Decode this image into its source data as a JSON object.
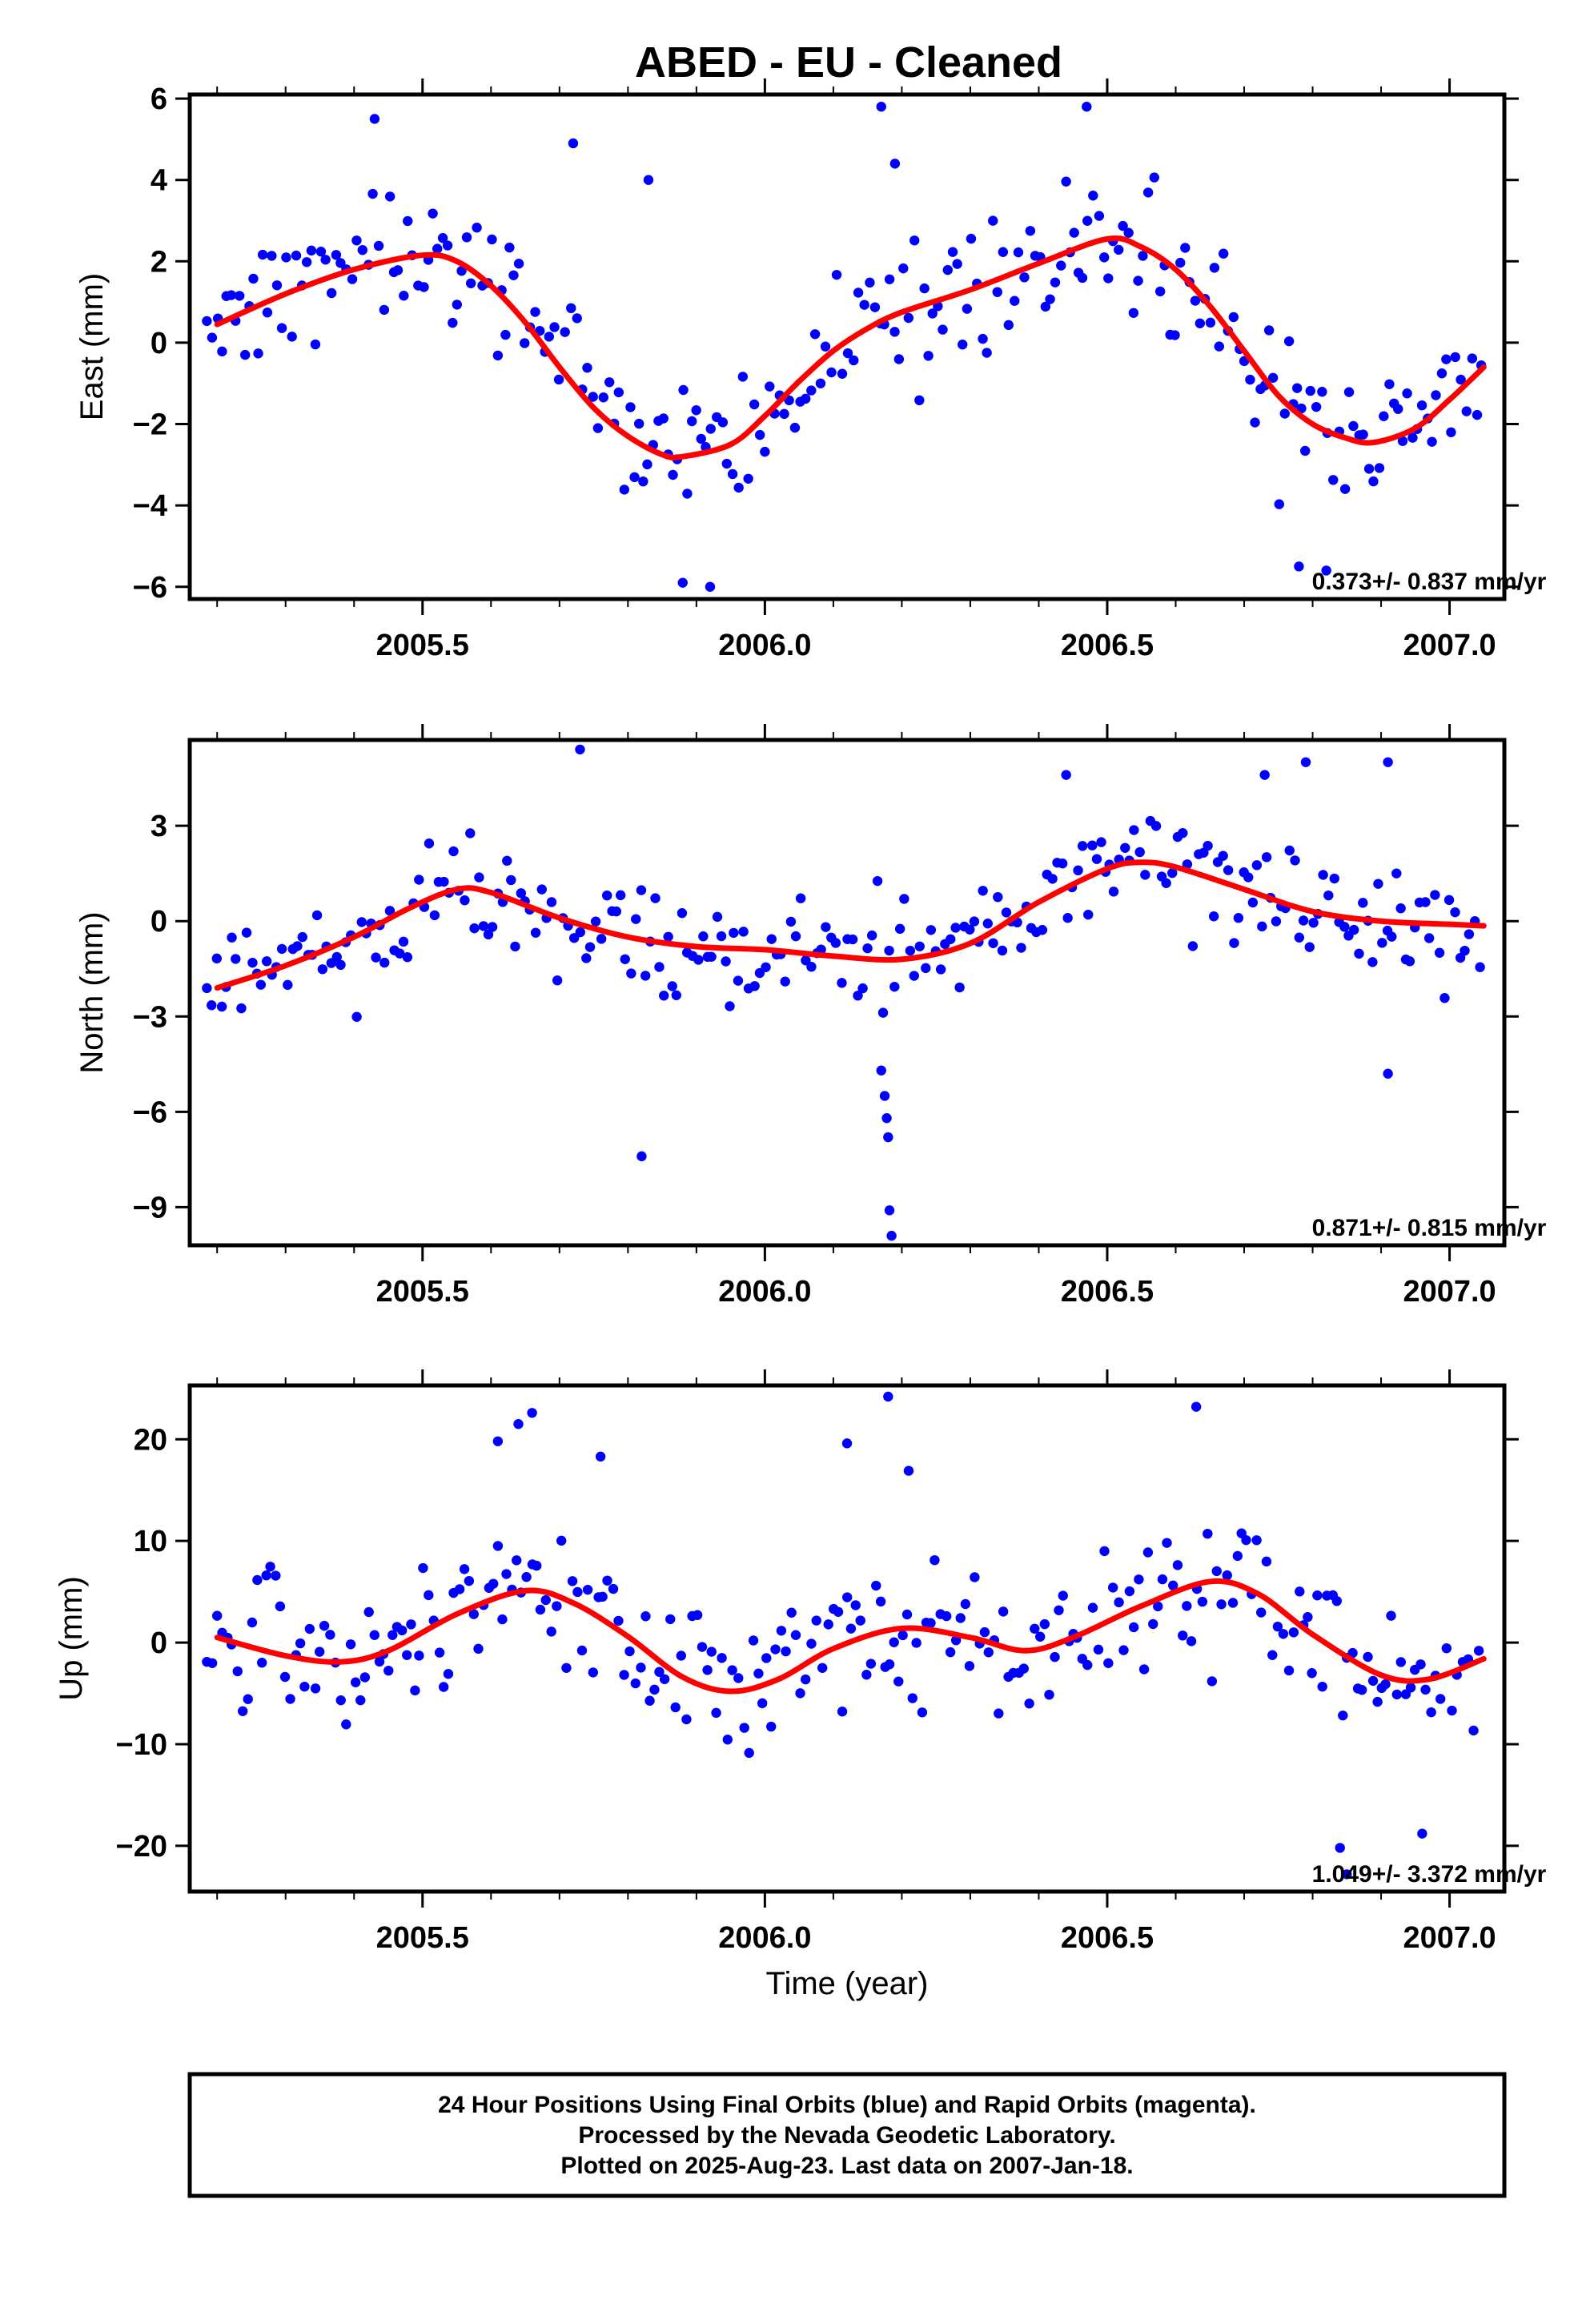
{
  "title": "ABED  - EU - Cleaned",
  "footer": {
    "line1": "24 Hour Positions Using Final Orbits (blue) and Rapid Orbits (magenta).",
    "line2": "Processed by the Nevada Geodetic Laboratory.",
    "line3": "Plotted on 2025-Aug-23. Last data on 2007-Jan-18."
  },
  "colors": {
    "points": "#0000ff",
    "fit": "#ff0000",
    "frame": "#000000"
  },
  "chart_data": [
    {
      "type": "scatter",
      "ylabel": "East (mm)",
      "xlabel": "",
      "xlim": [
        2005.16,
        2007.08
      ],
      "ylim": [
        -6.3,
        6.1
      ],
      "xticks": [
        2005.5,
        2006.0,
        2006.5,
        2007.0
      ],
      "xtick_labels": [
        "2005.5",
        "2006.0",
        "2006.5",
        "2007.0"
      ],
      "yticks": [
        -6,
        -4,
        -2,
        0,
        2,
        4,
        6
      ],
      "ytick_labels": [
        "−6",
        "−4",
        "−2",
        "0",
        "2",
        "4",
        "6"
      ],
      "rate": "0.373+/- 0.837 mm/yr",
      "noise": 1.4,
      "outliers": [
        [
          2005.43,
          5.5
        ],
        [
          2005.72,
          4.9
        ],
        [
          2005.83,
          4.0
        ],
        [
          2005.88,
          -5.9
        ],
        [
          2005.92,
          -6.0
        ],
        [
          2006.17,
          5.8
        ],
        [
          2006.19,
          4.4
        ],
        [
          2006.47,
          5.8
        ],
        [
          2006.78,
          -5.5
        ],
        [
          2006.82,
          -5.6
        ]
      ],
      "fit": [
        [
          2005.2,
          0.45
        ],
        [
          2005.3,
          1.2
        ],
        [
          2005.4,
          1.8
        ],
        [
          2005.5,
          2.15
        ],
        [
          2005.55,
          2.0
        ],
        [
          2005.6,
          1.4
        ],
        [
          2005.65,
          0.5
        ],
        [
          2005.7,
          -0.6
        ],
        [
          2005.75,
          -1.6
        ],
        [
          2005.8,
          -2.3
        ],
        [
          2005.85,
          -2.75
        ],
        [
          2005.88,
          -2.8
        ],
        [
          2005.95,
          -2.5
        ],
        [
          2006.0,
          -1.8
        ],
        [
          2006.05,
          -0.95
        ],
        [
          2006.1,
          -0.2
        ],
        [
          2006.15,
          0.35
        ],
        [
          2006.2,
          0.75
        ],
        [
          2006.3,
          1.3
        ],
        [
          2006.4,
          1.95
        ],
        [
          2006.5,
          2.55
        ],
        [
          2006.55,
          2.35
        ],
        [
          2006.6,
          1.8
        ],
        [
          2006.65,
          0.9
        ],
        [
          2006.7,
          -0.2
        ],
        [
          2006.75,
          -1.3
        ],
        [
          2006.8,
          -2.0
        ],
        [
          2006.85,
          -2.35
        ],
        [
          2006.89,
          -2.45
        ],
        [
          2006.95,
          -2.1
        ],
        [
          2007.0,
          -1.4
        ],
        [
          2007.05,
          -0.6
        ]
      ]
    },
    {
      "type": "scatter",
      "ylabel": "North (mm)",
      "xlabel": "",
      "xlim": [
        2005.16,
        2007.08
      ],
      "ylim": [
        -10.2,
        5.7
      ],
      "xticks": [
        2005.5,
        2006.0,
        2006.5,
        2007.0
      ],
      "xtick_labels": [
        "2005.5",
        "2006.0",
        "2006.5",
        "2007.0"
      ],
      "yticks": [
        -9,
        -6,
        -3,
        0,
        3
      ],
      "ytick_labels": [
        "−9",
        "−6",
        "−3",
        "0",
        "3"
      ],
      "rate": "0.871+/- 0.815 mm/yr",
      "noise": 1.5,
      "outliers": [
        [
          2005.73,
          5.4
        ],
        [
          2005.82,
          -7.4
        ],
        [
          2006.17,
          -4.7
        ],
        [
          2006.175,
          -5.5
        ],
        [
          2006.178,
          -6.2
        ],
        [
          2006.18,
          -6.8
        ],
        [
          2006.182,
          -9.1
        ],
        [
          2006.185,
          -9.9
        ],
        [
          2006.44,
          4.6
        ],
        [
          2006.73,
          4.6
        ],
        [
          2006.79,
          5.0
        ],
        [
          2006.91,
          5.0
        ],
        [
          2006.91,
          -4.8
        ]
      ],
      "fit": [
        [
          2005.2,
          -2.1
        ],
        [
          2005.3,
          -1.4
        ],
        [
          2005.4,
          -0.5
        ],
        [
          2005.48,
          0.4
        ],
        [
          2005.55,
          1.0
        ],
        [
          2005.6,
          0.9
        ],
        [
          2005.7,
          0.1
        ],
        [
          2005.8,
          -0.5
        ],
        [
          2005.9,
          -0.8
        ],
        [
          2006.0,
          -0.9
        ],
        [
          2006.1,
          -1.1
        ],
        [
          2006.2,
          -1.2
        ],
        [
          2006.3,
          -0.7
        ],
        [
          2006.4,
          0.6
        ],
        [
          2006.5,
          1.65
        ],
        [
          2006.55,
          1.85
        ],
        [
          2006.6,
          1.7
        ],
        [
          2006.7,
          1.0
        ],
        [
          2006.8,
          0.3
        ],
        [
          2006.9,
          0.0
        ],
        [
          2007.0,
          -0.1
        ],
        [
          2007.05,
          -0.15
        ]
      ]
    },
    {
      "type": "scatter",
      "ylabel": "Up (mm)",
      "xlabel": "Time (year)",
      "xlim": [
        2005.16,
        2007.08
      ],
      "ylim": [
        -24.5,
        25.3
      ],
      "xticks": [
        2005.5,
        2006.0,
        2006.5,
        2007.0
      ],
      "xtick_labels": [
        "2005.5",
        "2006.0",
        "2006.5",
        "2007.0"
      ],
      "yticks": [
        -20,
        -10,
        0,
        10,
        20
      ],
      "ytick_labels": [
        "−20",
        "−10",
        "0",
        "10",
        "20"
      ],
      "rate": "1.049+/- 3.372 mm/yr",
      "noise": 5.5,
      "outliers": [
        [
          2005.61,
          19.8
        ],
        [
          2005.64,
          21.5
        ],
        [
          2005.66,
          22.6
        ],
        [
          2005.76,
          18.3
        ],
        [
          2006.12,
          19.6
        ],
        [
          2006.18,
          24.2
        ],
        [
          2006.21,
          16.9
        ],
        [
          2006.63,
          23.2
        ],
        [
          2006.84,
          -20.2
        ],
        [
          2006.85,
          -22.8
        ],
        [
          2006.96,
          -18.8
        ]
      ],
      "fit": [
        [
          2005.2,
          0.5
        ],
        [
          2005.3,
          -1.3
        ],
        [
          2005.38,
          -1.9
        ],
        [
          2005.45,
          -0.8
        ],
        [
          2005.55,
          2.8
        ],
        [
          2005.65,
          5.1
        ],
        [
          2005.72,
          3.9
        ],
        [
          2005.8,
          0.6
        ],
        [
          2005.88,
          -3.4
        ],
        [
          2005.95,
          -4.8
        ],
        [
          2006.02,
          -3.6
        ],
        [
          2006.1,
          -0.6
        ],
        [
          2006.2,
          1.4
        ],
        [
          2006.3,
          0.5
        ],
        [
          2006.38,
          -0.8
        ],
        [
          2006.45,
          0.5
        ],
        [
          2006.55,
          3.6
        ],
        [
          2006.65,
          6.0
        ],
        [
          2006.72,
          4.8
        ],
        [
          2006.8,
          0.8
        ],
        [
          2006.9,
          -3.2
        ],
        [
          2006.97,
          -3.6
        ],
        [
          2007.05,
          -1.6
        ]
      ]
    }
  ]
}
